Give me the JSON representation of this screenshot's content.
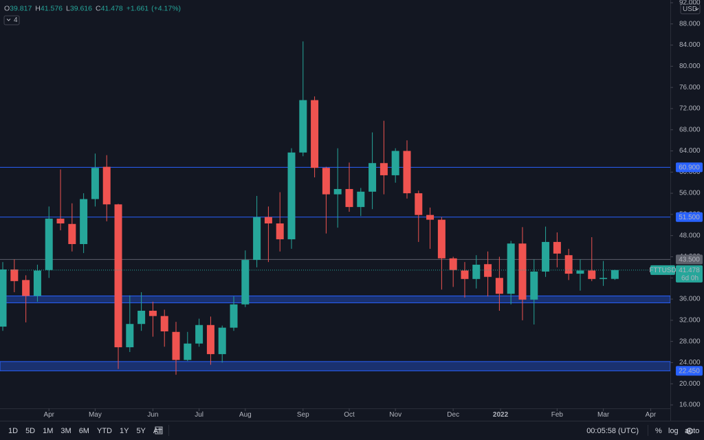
{
  "chart_data": {
    "type": "candlestick",
    "symbol": "FTTUSD",
    "currency": "USD",
    "indicator_count": 4,
    "ohlc_labels": [
      "O",
      "H",
      "L",
      "C"
    ],
    "change": "+1.661",
    "change_pct": "(+4.17%)",
    "countdown": "6d 0h",
    "up_color": "#26a69a",
    "down_color": "#ef5350",
    "categories": [
      null,
      null,
      null,
      null,
      null,
      null,
      null,
      null,
      null,
      null,
      null,
      null,
      null,
      null,
      null,
      null,
      null,
      null,
      null,
      null,
      null,
      null,
      null,
      null,
      null,
      null,
      null,
      null,
      null,
      null,
      null,
      null,
      null,
      null,
      null,
      null,
      null,
      null,
      null,
      null,
      null,
      null,
      null,
      null,
      null,
      null,
      null,
      null,
      null,
      null,
      null,
      null,
      null,
      null
    ],
    "open": [
      30.8,
      41.6,
      39.6,
      36.6,
      41.5,
      51.2,
      50.2,
      46.4,
      54.9,
      61,
      53.9,
      26.9,
      31.3,
      33.8,
      32.8,
      29.8,
      24.5,
      27.6,
      31.1,
      25.6,
      30.6,
      35,
      43.4,
      51.5,
      50.3,
      47.3,
      63.7,
      73.6,
      60.8,
      55.8,
      56.8,
      53.4,
      56.3,
      61.7,
      59.4,
      64,
      56,
      51.9,
      51,
      43.7,
      41.4,
      39.8,
      42.6,
      40,
      37,
      46.5,
      35.9,
      41.2,
      46.8,
      44.3,
      40.8,
      41.4,
      39.8,
      39.817
    ],
    "high": [
      43,
      43.5,
      40.5,
      42.5,
      53.5,
      60.5,
      54.1,
      56,
      63.5,
      63.2,
      54,
      36.7,
      37.3,
      35.5,
      34,
      31.7,
      29.8,
      32.3,
      32.7,
      31,
      36.5,
      45.2,
      55.5,
      53.5,
      56.2,
      64.5,
      84.7,
      74.3,
      61,
      64.5,
      61.8,
      57,
      67.5,
      69.7,
      64.5,
      66,
      56.5,
      53.3,
      51.5,
      44,
      43,
      44.3,
      45,
      44,
      47,
      49.6,
      43.5,
      49.7,
      48.6,
      45.5,
      43.5,
      47.7,
      43.2,
      41.576
    ],
    "low": [
      30,
      37.3,
      31.6,
      35.5,
      40,
      49,
      45,
      44.7,
      53.5,
      50.7,
      22.8,
      26,
      30,
      28.9,
      27,
      21.7,
      24.3,
      27,
      23.6,
      24,
      30,
      34.5,
      42,
      43,
      45,
      45.5,
      63,
      59,
      48.4,
      49.5,
      52.5,
      51.7,
      53,
      55.8,
      58,
      55,
      46.8,
      45.5,
      37.8,
      38.3,
      36.3,
      38,
      36.5,
      33.8,
      35,
      32,
      31.2,
      40.2,
      42,
      39.6,
      37.6,
      39.4,
      38.5,
      39.616
    ],
    "close": [
      41.6,
      39.4,
      36.6,
      41.4,
      51.2,
      50.3,
      46.4,
      54.9,
      60.8,
      53.9,
      26.9,
      31.3,
      33.8,
      32.8,
      29.9,
      24.5,
      27.6,
      31.1,
      25.6,
      30.6,
      35,
      43.4,
      51.5,
      50.3,
      47.3,
      63.7,
      73.6,
      60.8,
      55.8,
      56.8,
      53.4,
      56.3,
      61.7,
      59.4,
      64,
      56,
      51.9,
      51,
      43.7,
      41.5,
      39.8,
      42.5,
      40.2,
      37,
      46.5,
      35.9,
      41.2,
      46.8,
      44.6,
      40.8,
      41.4,
      39.8,
      40,
      41.478
    ],
    "xlim": [
      -0.24,
      57.8
    ],
    "xticks": [
      {
        "value": 4,
        "label": "Apr"
      },
      {
        "value": 8,
        "label": "May"
      },
      {
        "value": 13,
        "label": "Jun"
      },
      {
        "value": 17,
        "label": "Jul"
      },
      {
        "value": 21,
        "label": "Aug"
      },
      {
        "value": 26,
        "label": "Sep"
      },
      {
        "value": 30,
        "label": "Oct"
      },
      {
        "value": 34,
        "label": "Nov"
      },
      {
        "value": 39,
        "label": "Dec"
      },
      {
        "value": 43.1,
        "label": "2022"
      },
      {
        "value": 48,
        "label": "Feb"
      },
      {
        "value": 52,
        "label": "Mar"
      },
      {
        "value": 56.1,
        "label": "Apr"
      }
    ],
    "ylim": [
      16,
      92
    ],
    "yticks": [
      {
        "value": 16,
        "label": "16.000"
      },
      {
        "value": 20,
        "label": "20.000"
      },
      {
        "value": 24,
        "label": "24.000"
      },
      {
        "value": 28,
        "label": "28.000"
      },
      {
        "value": 32,
        "label": "32.000"
      },
      {
        "value": 36,
        "label": "36.000"
      },
      {
        "value": 40,
        "label": "40.000"
      },
      {
        "value": 44,
        "label": "44.000"
      },
      {
        "value": 48,
        "label": "48.000"
      },
      {
        "value": 52,
        "label": "52.000"
      },
      {
        "value": 56,
        "label": "56.000"
      },
      {
        "value": 60,
        "label": "60.000"
      },
      {
        "value": 64,
        "label": "64.000"
      },
      {
        "value": 68,
        "label": "68.000"
      },
      {
        "value": 72,
        "label": "72.000"
      },
      {
        "value": 76,
        "label": "76.000"
      },
      {
        "value": 80,
        "label": "80.000"
      },
      {
        "value": 84,
        "label": "84.000"
      },
      {
        "value": 88,
        "label": "88.000"
      },
      {
        "value": 92,
        "label": "92.000"
      }
    ],
    "price_lines": [
      {
        "value": 60.9,
        "label": "60.900",
        "color": "#2962ff"
      },
      {
        "value": 51.5,
        "label": "51.500",
        "color": "#2962ff"
      },
      {
        "value": 43.5,
        "label": "43.500",
        "color": "#5d606b"
      }
    ],
    "zones": [
      {
        "from": 35.3,
        "to": 36.6,
        "color": "#2962ff"
      },
      {
        "from": {
          "value": 22.45,
          "label": "22.450"
        },
        "to": 24.2,
        "color": "#2962ff"
      }
    ]
  },
  "toolbar": {
    "ranges": [
      "1D",
      "5D",
      "1M",
      "3M",
      "6M",
      "YTD",
      "1Y",
      "5Y",
      "All"
    ],
    "clock": "00:05:58 (UTC)",
    "options": [
      "%",
      "log",
      "auto"
    ]
  }
}
